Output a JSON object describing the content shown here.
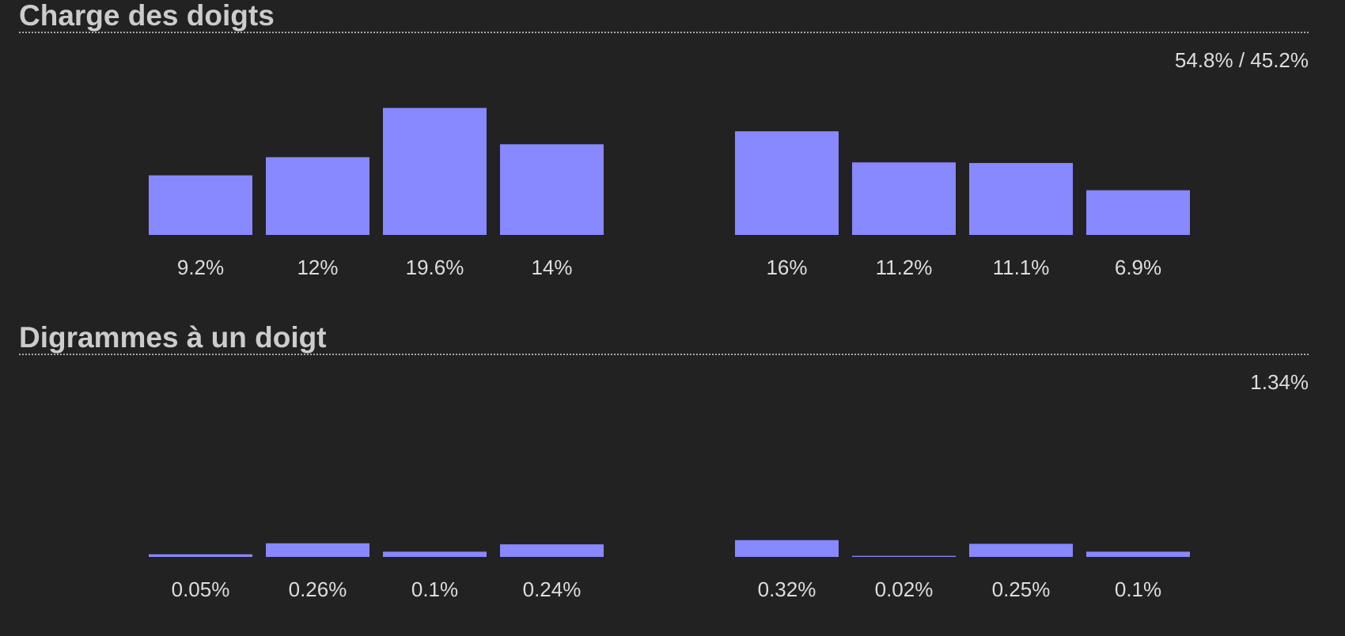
{
  "sections": [
    {
      "title": "Charge des doigts",
      "summary": "54.8% / 45.2%",
      "chart_data": {
        "type": "bar",
        "title": "",
        "xlabel": "",
        "ylabel": "",
        "ylim": [
          0,
          21
        ],
        "groups": [
          {
            "values": [
              9.2,
              12,
              19.6,
              14
            ],
            "labels": [
              "9.2%",
              "12%",
              "19.6%",
              "14%"
            ]
          },
          {
            "values": [
              16,
              11.2,
              11.1,
              6.9
            ],
            "labels": [
              "16%",
              "11.2%",
              "11.1%",
              "6.9%"
            ]
          }
        ],
        "color": "#8888ff"
      }
    },
    {
      "title": "Digrammes à un doigt",
      "summary": "1.34%",
      "chart_data": {
        "type": "bar",
        "title": "",
        "xlabel": "",
        "ylabel": "",
        "ylim": [
          0,
          2.6
        ],
        "groups": [
          {
            "values": [
              0.05,
              0.26,
              0.1,
              0.24
            ],
            "labels": [
              "0.05%",
              "0.26%",
              "0.1%",
              "0.24%"
            ]
          },
          {
            "values": [
              0.32,
              0.02,
              0.25,
              0.1
            ],
            "labels": [
              "0.32%",
              "0.02%",
              "0.25%",
              "0.1%"
            ]
          }
        ],
        "color": "#8888ff"
      }
    }
  ]
}
